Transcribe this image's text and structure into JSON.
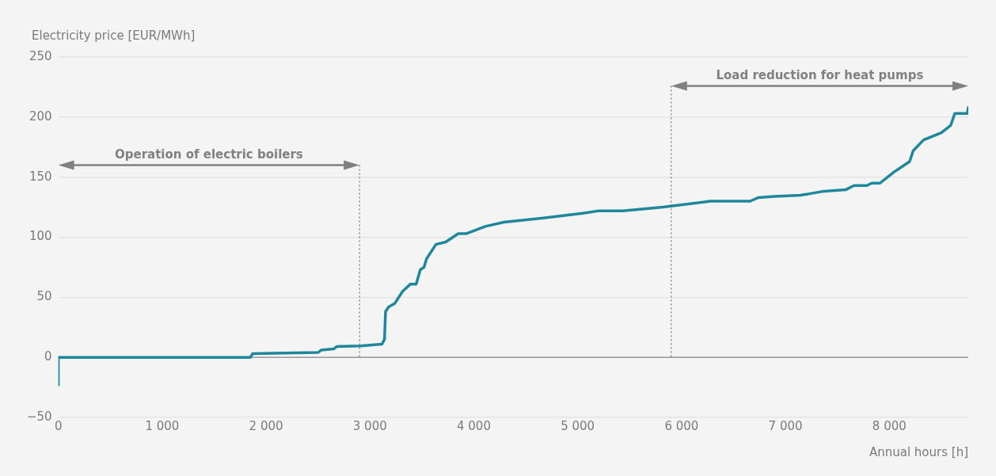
{
  "chart_data": {
    "type": "line",
    "xlabel": "Annual hours [h]",
    "ylabel": "Electricity price [EUR/MWh]",
    "x": [
      0,
      0,
      1850,
      1870,
      2500,
      2530,
      2650,
      2680,
      2910,
      3116,
      3140,
      3150,
      3180,
      3240,
      3315,
      3390,
      3445,
      3485,
      3520,
      3545,
      3635,
      3730,
      3850,
      3930,
      4110,
      4290,
      4670,
      5050,
      5205,
      5435,
      5820,
      6280,
      6660,
      6740,
      6890,
      7145,
      7220,
      7350,
      7580,
      7660,
      7785,
      7830,
      7910,
      8040,
      8195,
      8230,
      8330,
      8500,
      8590,
      8630,
      8750,
      8760
    ],
    "series": [
      {
        "color": "#1f879c",
        "values": [
          -23,
          0,
          0,
          3,
          4,
          6,
          7,
          9,
          9.5,
          11,
          15,
          38,
          42,
          45,
          55,
          61,
          61,
          73,
          75,
          82,
          94,
          96,
          103,
          103,
          109,
          112.5,
          116,
          120,
          122,
          122,
          125,
          130,
          130,
          133,
          134,
          135,
          136,
          138,
          139.5,
          143,
          143,
          145,
          145,
          154,
          163,
          172,
          181,
          187,
          193,
          203,
          203,
          208
        ]
      }
    ],
    "xlim": [
      0,
      8760
    ],
    "xticks": [
      0,
      {
        "value": 1000,
        "label": "1 000"
      },
      {
        "value": 2000,
        "label": "2 000"
      },
      {
        "value": 3000,
        "label": "3 000"
      },
      {
        "value": 4000,
        "label": "4 000"
      },
      {
        "value": 5000,
        "label": "5 000"
      },
      {
        "value": 6000,
        "label": "6 000"
      },
      {
        "value": 7000,
        "label": "7 000"
      },
      {
        "value": 8000,
        "label": "8 000"
      }
    ],
    "ylim": [
      -50,
      250
    ],
    "yticks": [
      {
        "value": -50,
        "label": "−50"
      },
      0,
      50,
      100,
      150,
      200,
      250
    ],
    "grid": "y",
    "legend": false,
    "marker": "none",
    "line_style": "solid",
    "ref_lines": [
      {
        "axis": "x",
        "value": 2900,
        "color": "#555555",
        "line_style": "dotted"
      },
      {
        "axis": "x",
        "value": 5900,
        "color": "#555555",
        "line_style": "dotted"
      }
    ],
    "annotations": [
      "Operation of electric boilers",
      "Load reduction for heat pumps"
    ]
  }
}
